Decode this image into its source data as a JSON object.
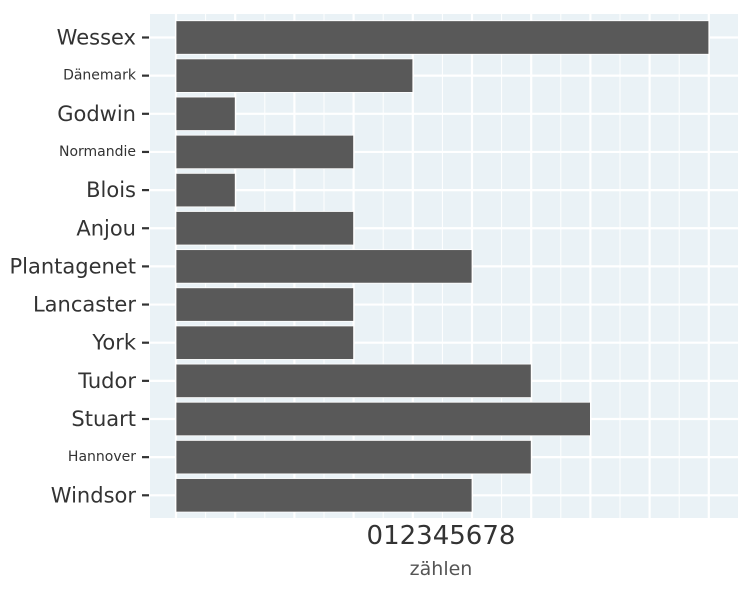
{
  "chart_data": {
    "type": "bar",
    "orientation": "horizontal",
    "categories": [
      "Wessex",
      "Dänemark",
      "Godwin",
      "Normandie",
      "Blois",
      "Anjou",
      "Plantagenet",
      "Lancaster",
      "York",
      "Tudor",
      "Stuart",
      "Hannover",
      "Windsor"
    ],
    "values": [
      9,
      4,
      1,
      3,
      1,
      3,
      5,
      3,
      3,
      6,
      7,
      6,
      5
    ],
    "x_tick_labels": [
      "0",
      "1",
      "2",
      "3",
      "4",
      "5",
      "6",
      "7",
      "8"
    ],
    "xlabel": "zählen",
    "ylabel": "",
    "xlim": [
      0,
      9
    ],
    "grid": true,
    "colors": {
      "panel_background": "#eaf2f6",
      "grid": "#ffffff",
      "bar": "#595959",
      "bar_outline": "#ffffff"
    }
  }
}
